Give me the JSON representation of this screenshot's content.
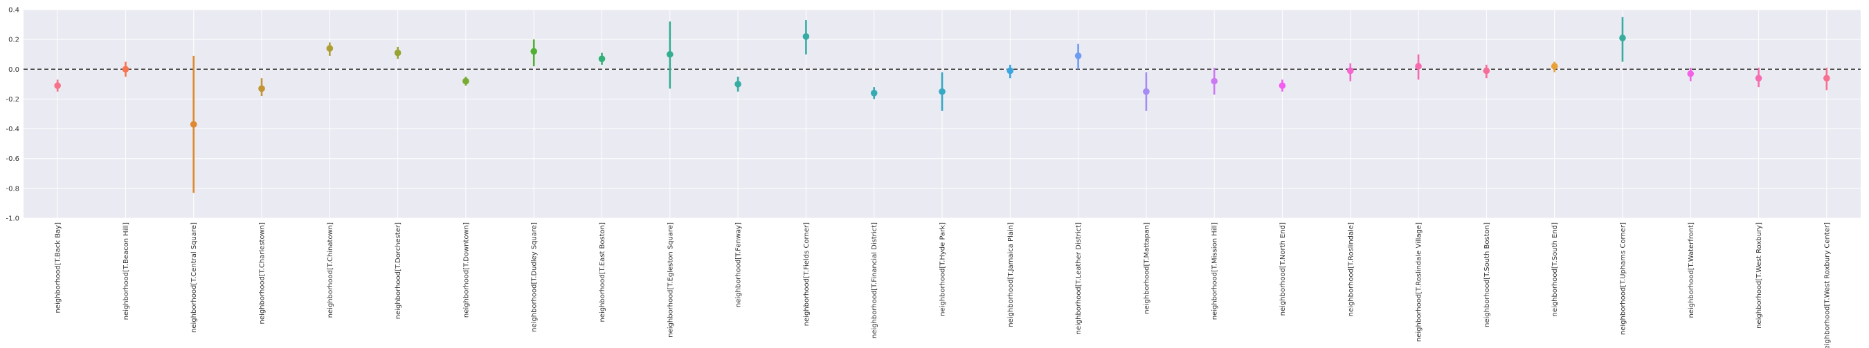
{
  "chart_data": {
    "type": "pointplot",
    "title": "",
    "xlabel": "",
    "ylabel": "",
    "ylim": [
      -1.0,
      0.4
    ],
    "yticks": [
      "0.4",
      "0.2",
      "0.0",
      "-0.2",
      "-0.4",
      "-0.6",
      "-0.8",
      "-1.0"
    ],
    "ytick_values": [
      0.4,
      0.2,
      0.0,
      -0.2,
      -0.4,
      -0.6,
      -0.8,
      -1.0
    ],
    "reference_line": 0.0,
    "grid": true,
    "background": "#eaeaf2",
    "categories": [
      "neighborhood[T.Back Bay]",
      "neighborhood[T.Beacon Hill]",
      "neighborhood[T.Central Square]",
      "neighborhood[T.Charlestown]",
      "neighborhood[T.Chinatown]",
      "neighborhood[T.Dorchester]",
      "neighborhood[T.Downtown]",
      "neighborhood[T.Dudley Square]",
      "neighborhood[T.East Boston]",
      "neighborhood[T.Egleston Square]",
      "neighborhood[T.Fenway]",
      "neighborhood[T.Fields Corner]",
      "neighborhood[T.Financial District]",
      "neighborhood[T.Hyde Park]",
      "neighborhood[T.Jamaica Plain]",
      "neighborhood[T.Leather District]",
      "neighborhood[T.Mattapan]",
      "neighborhood[T.Mission Hill]",
      "neighborhood[T.North End]",
      "neighborhood[T.Roslindale]",
      "neighborhood[T.Roslindale Village]",
      "neighborhood[T.South Boston]",
      "neighborhood[T.South End]",
      "neighborhood[T.Uphams Corner]",
      "neighborhood[T.Waterfront]",
      "neighborhood[T.West Roxbury]",
      "neighborhood[T.West Roxbury Center]"
    ],
    "values": [
      -0.11,
      0.0,
      -0.37,
      -0.13,
      0.14,
      0.11,
      -0.08,
      0.12,
      0.07,
      0.1,
      -0.1,
      0.22,
      -0.16,
      -0.15,
      -0.01,
      0.09,
      -0.15,
      -0.08,
      -0.11,
      -0.01,
      0.02,
      -0.01,
      0.02,
      0.21,
      -0.03,
      -0.06,
      -0.06
    ],
    "lower": [
      -0.15,
      -0.05,
      -0.83,
      -0.18,
      0.09,
      0.07,
      -0.11,
      0.02,
      0.03,
      -0.13,
      -0.15,
      0.1,
      -0.2,
      -0.28,
      -0.06,
      0.0,
      -0.28,
      -0.17,
      -0.15,
      -0.08,
      -0.07,
      -0.06,
      -0.02,
      0.05,
      -0.08,
      -0.12,
      -0.14
    ],
    "upper": [
      -0.07,
      0.05,
      0.09,
      -0.06,
      0.18,
      0.15,
      -0.05,
      0.2,
      0.11,
      0.32,
      -0.05,
      0.33,
      -0.12,
      -0.02,
      0.03,
      0.17,
      -0.02,
      0.01,
      -0.07,
      0.04,
      0.1,
      0.03,
      0.05,
      0.35,
      0.01,
      0.01,
      0.01
    ],
    "colors": [
      "#f77189",
      "#f7754f",
      "#dc8932",
      "#c39532",
      "#ae9d31",
      "#97a431",
      "#77ab31",
      "#50b131",
      "#33b07a",
      "#34ae91",
      "#35aca4",
      "#36ada4",
      "#37abb4",
      "#38a9c5",
      "#3aa5df",
      "#6e9bf4",
      "#a48cf4",
      "#cc7af4",
      "#f45cf2",
      "#f565cc",
      "#f66bad",
      "#f56e98",
      "#e9a035",
      "#36ad9f",
      "#f362e6",
      "#f66caf",
      "#f7708f"
    ]
  }
}
